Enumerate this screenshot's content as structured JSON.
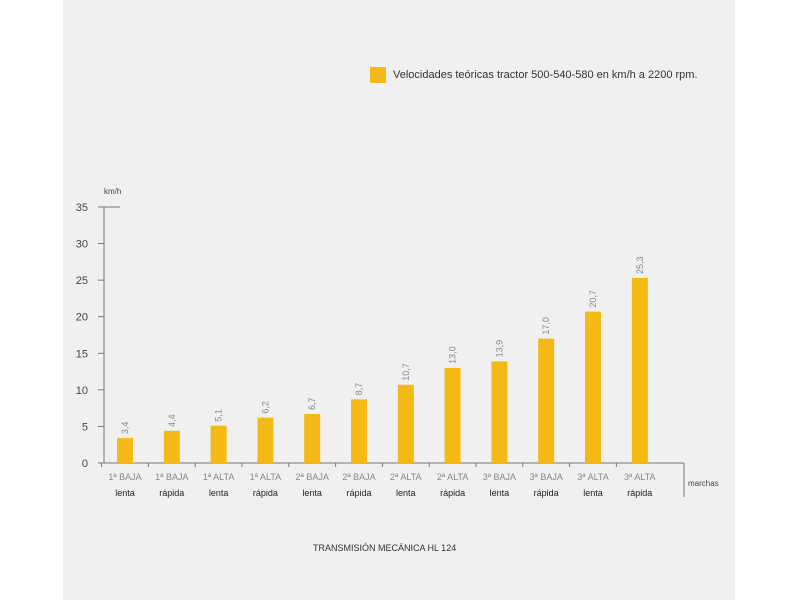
{
  "chart_data": {
    "type": "bar",
    "title": "",
    "legend": {
      "label": "Velocidades teóricas tractor 500-540-580 en km/h a 2200 rpm.",
      "placement": "top-right"
    },
    "ylabel": "km/h",
    "xlabel": "marchas",
    "ylim": [
      0,
      35
    ],
    "yticks": [
      "0",
      "5",
      "10",
      "15",
      "20",
      "25",
      "30",
      "35"
    ],
    "categories": [
      {
        "top": "1ª BAJA",
        "bottom": "lenta"
      },
      {
        "top": "1ª BAJA",
        "bottom": "rápida"
      },
      {
        "top": "1ª ALTA",
        "bottom": "lenta"
      },
      {
        "top": "1ª ALTA",
        "bottom": "rápida"
      },
      {
        "top": "2ª BAJA",
        "bottom": "lenta"
      },
      {
        "top": "2ª BAJA",
        "bottom": "rápida"
      },
      {
        "top": "2ª ALTA",
        "bottom": "lenta"
      },
      {
        "top": "2ª ALTA",
        "bottom": "rápida"
      },
      {
        "top": "3ª BAJA",
        "bottom": "lenta"
      },
      {
        "top": "3ª BAJA",
        "bottom": "rápida"
      },
      {
        "top": "3ª ALTA",
        "bottom": "lenta"
      },
      {
        "top": "3ª ALTA",
        "bottom": "rápida"
      }
    ],
    "values": [
      3.4,
      4.4,
      5.1,
      6.2,
      6.7,
      8.7,
      10.7,
      13.0,
      13.9,
      17.0,
      20.7,
      25.3
    ],
    "value_labels": [
      "3,4",
      "4,4",
      "5,1",
      "6,2",
      "6,7",
      "8,7",
      "10,7",
      "13,0",
      "13,9",
      "17,0",
      "20,7",
      "25,3"
    ],
    "colors": {
      "bar": "#f5b916",
      "axis": "#777777",
      "tick_label": "#444444",
      "category_top": "#888888",
      "category_bottom": "#222222",
      "value_label": "#888888"
    },
    "grid": false
  },
  "caption": "TRANSMISIÓN MECÁNICA HL 124"
}
